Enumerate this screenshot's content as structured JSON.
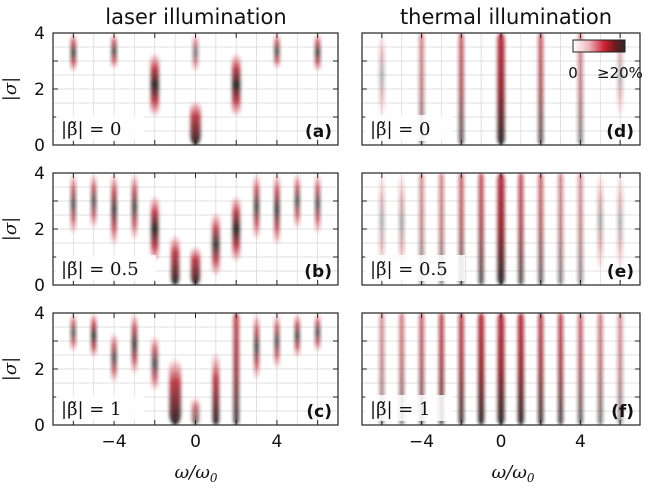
{
  "column_titles": [
    "laser illumination",
    "thermal illumination"
  ],
  "colorbar": {
    "min_label": "0",
    "max_label": "≥20%",
    "colors": [
      "#ffffff",
      "#e8a0a8",
      "#cc2233",
      "#6b1a1a",
      "#2b2b2b"
    ]
  },
  "chart_data": {
    "type": "heatmap",
    "xlabel": "ω/ω0",
    "ylabel": "|σ|",
    "xlim": [
      -7,
      7
    ],
    "ylim": [
      0,
      4
    ],
    "xticks": [
      "−4",
      "0",
      "4"
    ],
    "yticks": [
      "0",
      "2",
      "4"
    ],
    "panels": [
      {
        "id": "a",
        "letter": "(a)",
        "column": "laser illumination",
        "beta_label": "|β̃| = 0",
        "beta": 0,
        "bands": [
          {
            "x": -6,
            "y0": 2.6,
            "y1": 4.0,
            "w": 0.13,
            "a": 0.85
          },
          {
            "x": -4,
            "y0": 2.7,
            "y1": 4.0,
            "w": 0.13,
            "a": 0.8
          },
          {
            "x": -2,
            "y0": 1.0,
            "y1": 3.3,
            "w": 0.2,
            "a": 1.0
          },
          {
            "x": 0,
            "y0": 0.0,
            "y1": 1.6,
            "w": 0.25,
            "a": 1.0
          },
          {
            "x": 0,
            "y0": 2.6,
            "y1": 4.0,
            "w": 0.13,
            "a": 0.6
          },
          {
            "x": 2,
            "y0": 1.0,
            "y1": 3.3,
            "w": 0.2,
            "a": 1.0
          },
          {
            "x": 4,
            "y0": 2.7,
            "y1": 4.0,
            "w": 0.13,
            "a": 0.8
          },
          {
            "x": 6,
            "y0": 2.6,
            "y1": 4.0,
            "w": 0.13,
            "a": 0.85
          }
        ]
      },
      {
        "id": "b",
        "letter": "(b)",
        "column": "laser illumination",
        "beta_label": "|β̃| = 0.5",
        "beta": 0.5,
        "bands": [
          {
            "x": -6,
            "y0": 1.8,
            "y1": 4.0,
            "w": 0.12,
            "a": 0.8
          },
          {
            "x": -5,
            "y0": 2.0,
            "y1": 4.0,
            "w": 0.12,
            "a": 0.8
          },
          {
            "x": -4,
            "y0": 1.4,
            "y1": 4.0,
            "w": 0.13,
            "a": 0.9
          },
          {
            "x": -3,
            "y0": 1.6,
            "y1": 4.0,
            "w": 0.13,
            "a": 0.85
          },
          {
            "x": -2,
            "y0": 0.8,
            "y1": 3.2,
            "w": 0.18,
            "a": 1.0
          },
          {
            "x": -1,
            "y0": 0.0,
            "y1": 1.8,
            "w": 0.2,
            "a": 1.0
          },
          {
            "x": 0,
            "y0": 0.0,
            "y1": 1.4,
            "w": 0.22,
            "a": 1.0
          },
          {
            "x": 1,
            "y0": 0.3,
            "y1": 2.6,
            "w": 0.18,
            "a": 0.9
          },
          {
            "x": 2,
            "y0": 0.8,
            "y1": 3.2,
            "w": 0.18,
            "a": 1.0
          },
          {
            "x": 3,
            "y0": 1.6,
            "y1": 4.0,
            "w": 0.13,
            "a": 0.85
          },
          {
            "x": 4,
            "y0": 1.4,
            "y1": 4.0,
            "w": 0.13,
            "a": 0.9
          },
          {
            "x": 5,
            "y0": 2.0,
            "y1": 4.0,
            "w": 0.12,
            "a": 0.8
          },
          {
            "x": 6,
            "y0": 1.8,
            "y1": 4.0,
            "w": 0.12,
            "a": 0.8
          }
        ]
      },
      {
        "id": "c",
        "letter": "(c)",
        "column": "laser illumination",
        "beta_label": "|β̃| = 1",
        "beta": 1,
        "bands": [
          {
            "x": -6,
            "y0": 2.6,
            "y1": 4.0,
            "w": 0.12,
            "a": 0.75
          },
          {
            "x": -5,
            "y0": 2.4,
            "y1": 4.0,
            "w": 0.12,
            "a": 0.95
          },
          {
            "x": -4,
            "y0": 1.5,
            "y1": 3.3,
            "w": 0.13,
            "a": 0.8
          },
          {
            "x": -3,
            "y0": 1.8,
            "y1": 4.0,
            "w": 0.13,
            "a": 0.9
          },
          {
            "x": -2,
            "y0": 1.2,
            "y1": 3.2,
            "w": 0.15,
            "a": 0.8
          },
          {
            "x": -1,
            "y0": 0.0,
            "y1": 2.4,
            "w": 0.28,
            "a": 1.0
          },
          {
            "x": 0,
            "y0": 0.0,
            "y1": 1.0,
            "w": 0.18,
            "a": 0.7
          },
          {
            "x": 1,
            "y0": 0.0,
            "y1": 2.6,
            "w": 0.16,
            "a": 1.0
          },
          {
            "x": 2,
            "y0": 0.0,
            "y1": 4.0,
            "w": 0.14,
            "a": 0.85
          },
          {
            "x": 3,
            "y0": 1.6,
            "y1": 4.0,
            "w": 0.12,
            "a": 0.85
          },
          {
            "x": 4,
            "y0": 2.0,
            "y1": 4.0,
            "w": 0.12,
            "a": 0.8
          },
          {
            "x": 5,
            "y0": 2.4,
            "y1": 4.0,
            "w": 0.12,
            "a": 0.85
          },
          {
            "x": 6,
            "y0": 2.6,
            "y1": 4.0,
            "w": 0.12,
            "a": 0.8
          }
        ]
      },
      {
        "id": "d",
        "letter": "(d)",
        "column": "thermal illumination",
        "beta_label": "|β̃| = 0",
        "beta": 0,
        "bands": [
          {
            "x": -6,
            "y0": 1.0,
            "y1": 4.0,
            "w": 0.1,
            "a": 0.35
          },
          {
            "x": -4,
            "y0": 0.0,
            "y1": 4.0,
            "w": 0.1,
            "a": 0.55
          },
          {
            "x": -2,
            "y0": 0.0,
            "y1": 4.0,
            "w": 0.12,
            "a": 0.75
          },
          {
            "x": 0,
            "y0": 0.0,
            "y1": 4.0,
            "w": 0.18,
            "a": 1.0
          },
          {
            "x": 2,
            "y0": 0.0,
            "y1": 4.0,
            "w": 0.12,
            "a": 0.75
          },
          {
            "x": 4,
            "y0": 0.0,
            "y1": 4.0,
            "w": 0.1,
            "a": 0.55
          },
          {
            "x": 6,
            "y0": 1.0,
            "y1": 4.0,
            "w": 0.1,
            "a": 0.35
          }
        ]
      },
      {
        "id": "e",
        "letter": "(e)",
        "column": "thermal illumination",
        "beta_label": "|β̃| = 0.5",
        "beta": 0.5,
        "bands": [
          {
            "x": -6,
            "y0": 0.5,
            "y1": 4.0,
            "w": 0.1,
            "a": 0.35
          },
          {
            "x": -5,
            "y0": 0.5,
            "y1": 4.0,
            "w": 0.1,
            "a": 0.4
          },
          {
            "x": -4,
            "y0": 0.0,
            "y1": 4.0,
            "w": 0.1,
            "a": 0.5
          },
          {
            "x": -3,
            "y0": 0.0,
            "y1": 4.0,
            "w": 0.1,
            "a": 0.55
          },
          {
            "x": -2,
            "y0": 0.0,
            "y1": 4.0,
            "w": 0.12,
            "a": 0.7
          },
          {
            "x": -1,
            "y0": 0.0,
            "y1": 4.0,
            "w": 0.13,
            "a": 0.8
          },
          {
            "x": 0,
            "y0": 0.0,
            "y1": 4.0,
            "w": 0.18,
            "a": 1.0
          },
          {
            "x": 1,
            "y0": 0.0,
            "y1": 4.0,
            "w": 0.13,
            "a": 0.8
          },
          {
            "x": 2,
            "y0": 0.0,
            "y1": 4.0,
            "w": 0.12,
            "a": 0.7
          },
          {
            "x": 3,
            "y0": 0.0,
            "y1": 4.0,
            "w": 0.1,
            "a": 0.55
          },
          {
            "x": 4,
            "y0": 0.0,
            "y1": 4.0,
            "w": 0.1,
            "a": 0.5
          },
          {
            "x": 5,
            "y0": 0.5,
            "y1": 4.0,
            "w": 0.1,
            "a": 0.4
          },
          {
            "x": 6,
            "y0": 0.5,
            "y1": 4.0,
            "w": 0.1,
            "a": 0.35
          }
        ]
      },
      {
        "id": "f",
        "letter": "(f)",
        "column": "thermal illumination",
        "beta_label": "|β̃| = 1",
        "beta": 1,
        "bands": [
          {
            "x": -6,
            "y0": 0.0,
            "y1": 4.0,
            "w": 0.1,
            "a": 0.5
          },
          {
            "x": -5,
            "y0": 0.0,
            "y1": 4.0,
            "w": 0.1,
            "a": 0.6
          },
          {
            "x": -4,
            "y0": 0.0,
            "y1": 4.0,
            "w": 0.11,
            "a": 0.7
          },
          {
            "x": -3,
            "y0": 0.0,
            "y1": 4.0,
            "w": 0.12,
            "a": 0.85
          },
          {
            "x": -2,
            "y0": 0.0,
            "y1": 4.0,
            "w": 0.13,
            "a": 0.9
          },
          {
            "x": -1,
            "y0": 0.0,
            "y1": 4.0,
            "w": 0.15,
            "a": 1.0
          },
          {
            "x": 0,
            "y0": 0.0,
            "y1": 4.0,
            "w": 0.17,
            "a": 1.0
          },
          {
            "x": 1,
            "y0": 0.0,
            "y1": 4.0,
            "w": 0.15,
            "a": 1.0
          },
          {
            "x": 2,
            "y0": 0.0,
            "y1": 4.0,
            "w": 0.13,
            "a": 0.9
          },
          {
            "x": 3,
            "y0": 0.0,
            "y1": 4.0,
            "w": 0.12,
            "a": 0.85
          },
          {
            "x": 4,
            "y0": 0.0,
            "y1": 4.0,
            "w": 0.11,
            "a": 0.7
          },
          {
            "x": 5,
            "y0": 0.0,
            "y1": 4.0,
            "w": 0.1,
            "a": 0.6
          },
          {
            "x": 6,
            "y0": 0.0,
            "y1": 4.0,
            "w": 0.1,
            "a": 0.5
          }
        ]
      }
    ]
  }
}
